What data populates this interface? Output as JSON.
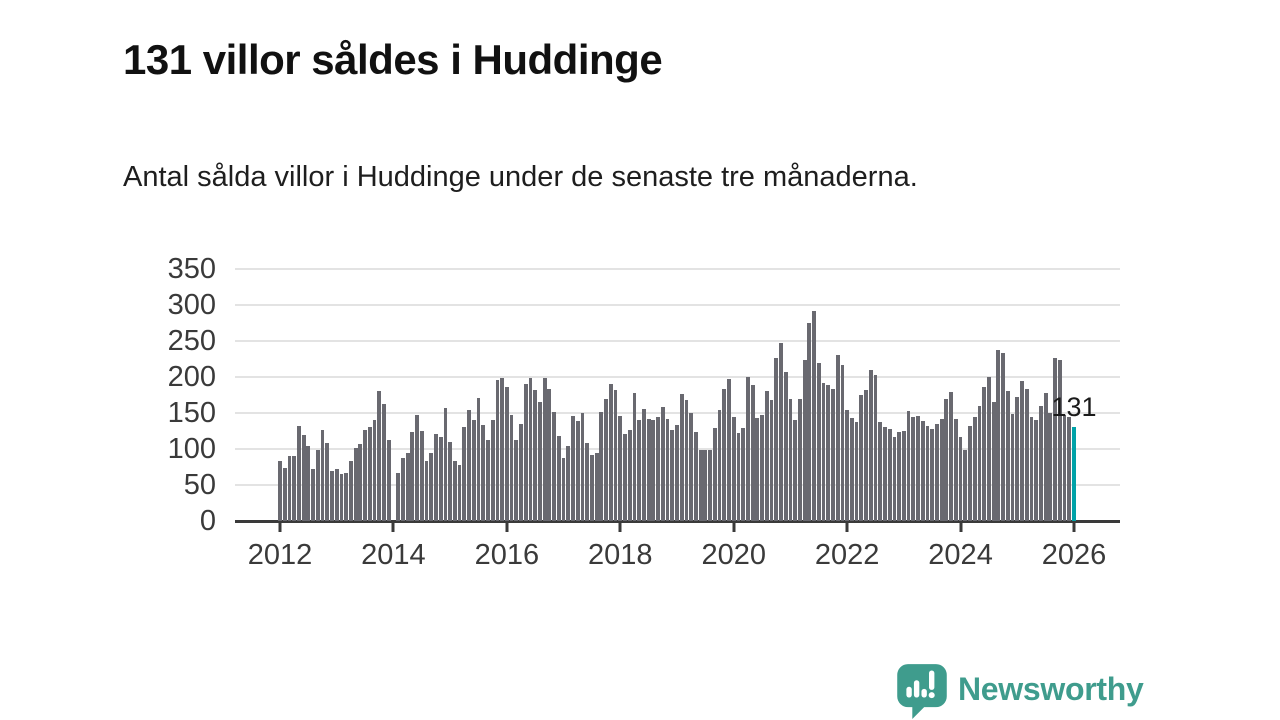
{
  "header": {
    "title": "131 villor såldes i Huddinge",
    "subtitle": "Antal sålda villor i Huddinge under de senaste tre månaderna."
  },
  "chart_data": {
    "type": "bar",
    "title": "131 villor såldes i Huddinge",
    "x_start": "2012-01",
    "x_frequency": "monthly",
    "ylabel": "",
    "xlabel": "",
    "ylim": [
      0,
      350
    ],
    "yticks": [
      0,
      50,
      100,
      150,
      200,
      250,
      300,
      350
    ],
    "xtick_years": [
      2012,
      2014,
      2016,
      2018,
      2020,
      2022,
      2024,
      2026
    ],
    "grid": "horizontal",
    "bar_color": "#696970",
    "accent_color": "#00a2a8",
    "highlight_index": 168,
    "highlight_value": 131,
    "annotation": "131",
    "values": [
      83,
      74,
      90,
      90,
      132,
      120,
      104,
      72,
      98,
      127,
      109,
      69,
      72,
      65,
      66,
      83,
      102,
      107,
      127,
      130,
      140,
      181,
      163,
      113,
      0,
      67,
      87,
      94,
      124,
      147,
      125,
      84,
      94,
      121,
      117,
      157,
      110,
      83,
      78,
      130,
      154,
      140,
      171,
      134,
      112,
      140,
      196,
      198,
      186,
      147,
      113,
      135,
      190,
      198,
      182,
      165,
      199,
      184,
      152,
      118,
      87,
      104,
      146,
      139,
      150,
      109,
      92,
      95,
      152,
      169,
      190,
      182,
      146,
      121,
      126,
      178,
      140,
      156,
      141,
      140,
      144,
      159,
      141,
      126,
      133,
      177,
      168,
      150,
      124,
      99,
      98,
      99,
      129,
      154,
      184,
      197,
      145,
      122,
      129,
      200,
      189,
      143,
      147,
      180,
      168,
      226,
      247,
      207,
      169,
      140,
      170,
      224,
      275,
      291,
      219,
      191,
      189,
      184,
      231,
      217,
      154,
      143,
      138,
      175,
      182,
      210,
      203,
      137,
      130,
      128,
      116,
      123,
      125,
      153,
      144,
      146,
      139,
      132,
      128,
      135,
      142,
      170,
      179,
      142,
      116,
      99,
      132,
      144,
      160,
      186,
      200,
      165,
      237,
      233,
      181,
      149,
      172,
      195,
      184,
      144,
      140,
      160,
      178,
      150,
      227,
      224,
      147,
      144,
      131
    ]
  },
  "footer": {
    "brand": "Newsworthy",
    "logo_icon": "newsworthy-speech-bubble-bars-icon",
    "logo_color": "#3f9c8d"
  }
}
